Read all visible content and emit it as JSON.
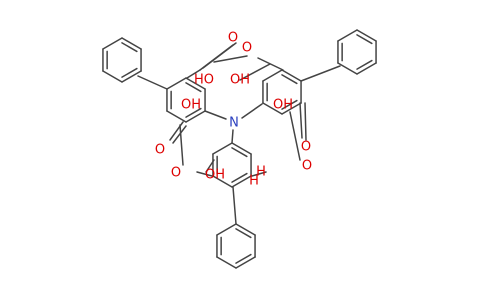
{
  "atoms": [
    "O",
    "O",
    "HO",
    "OH",
    "OH",
    "OH",
    "N",
    "O",
    "O",
    "O",
    "O",
    "OH",
    "H",
    "H"
  ]
}
